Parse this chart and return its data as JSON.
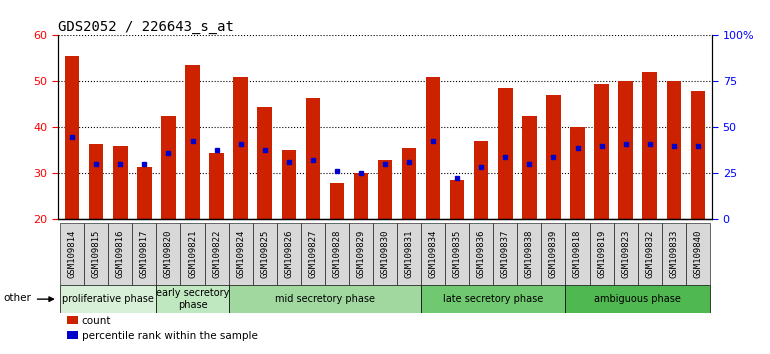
{
  "title": "GDS2052 / 226643_s_at",
  "samples": [
    "GSM109814",
    "GSM109815",
    "GSM109816",
    "GSM109817",
    "GSM109820",
    "GSM109821",
    "GSM109822",
    "GSM109824",
    "GSM109825",
    "GSM109826",
    "GSM109827",
    "GSM109828",
    "GSM109829",
    "GSM109830",
    "GSM109831",
    "GSM109834",
    "GSM109835",
    "GSM109836",
    "GSM109837",
    "GSM109838",
    "GSM109839",
    "GSM109818",
    "GSM109819",
    "GSM109823",
    "GSM109832",
    "GSM109833",
    "GSM109840"
  ],
  "counts": [
    55.5,
    36.5,
    36.0,
    31.5,
    42.5,
    53.5,
    34.5,
    51.0,
    44.5,
    35.0,
    46.5,
    28.0,
    30.0,
    33.0,
    35.5,
    51.0,
    28.5,
    37.0,
    48.5,
    42.5,
    47.0,
    40.0,
    49.5,
    50.0,
    52.0,
    50.0,
    48.0
  ],
  "percentile_ranks": [
    38.0,
    32.0,
    32.0,
    32.0,
    34.5,
    37.0,
    35.0,
    36.5,
    35.0,
    32.5,
    33.0,
    30.5,
    30.0,
    32.0,
    32.5,
    37.0,
    29.0,
    31.5,
    33.5,
    32.0,
    33.5,
    35.5,
    36.0,
    36.5,
    36.5,
    36.0,
    36.0
  ],
  "phases": {
    "proliferative phase": [
      "GSM109814",
      "GSM109815",
      "GSM109816",
      "GSM109817"
    ],
    "early secretory\nphase": [
      "GSM109820",
      "GSM109821",
      "GSM109822"
    ],
    "mid secretory phase": [
      "GSM109824",
      "GSM109825",
      "GSM109826",
      "GSM109827",
      "GSM109828",
      "GSM109829",
      "GSM109830",
      "GSM109831"
    ],
    "late secretory phase": [
      "GSM109834",
      "GSM109835",
      "GSM109836",
      "GSM109837",
      "GSM109838",
      "GSM109839"
    ],
    "ambiguous phase": [
      "GSM109818",
      "GSM109819",
      "GSM109823",
      "GSM109832",
      "GSM109833",
      "GSM109840"
    ]
  },
  "phase_colors": {
    "proliferative phase": "#d8f0d8",
    "early secretory\nphase": "#c0e8c0",
    "mid secretory phase": "#a0d8a0",
    "late secretory phase": "#70c870",
    "ambiguous phase": "#50b850"
  },
  "phase_order": [
    "proliferative phase",
    "early secretory\nphase",
    "mid secretory phase",
    "late secretory phase",
    "ambiguous phase"
  ],
  "bar_color": "#cc2200",
  "percentile_color": "#0000cc",
  "ylim_left": [
    20,
    60
  ],
  "ylim_right": [
    0,
    100
  ],
  "bar_color_hex": "#cc2200",
  "title_fontsize": 10,
  "tick_fontsize": 6.5,
  "phase_label_fontsize": 7
}
